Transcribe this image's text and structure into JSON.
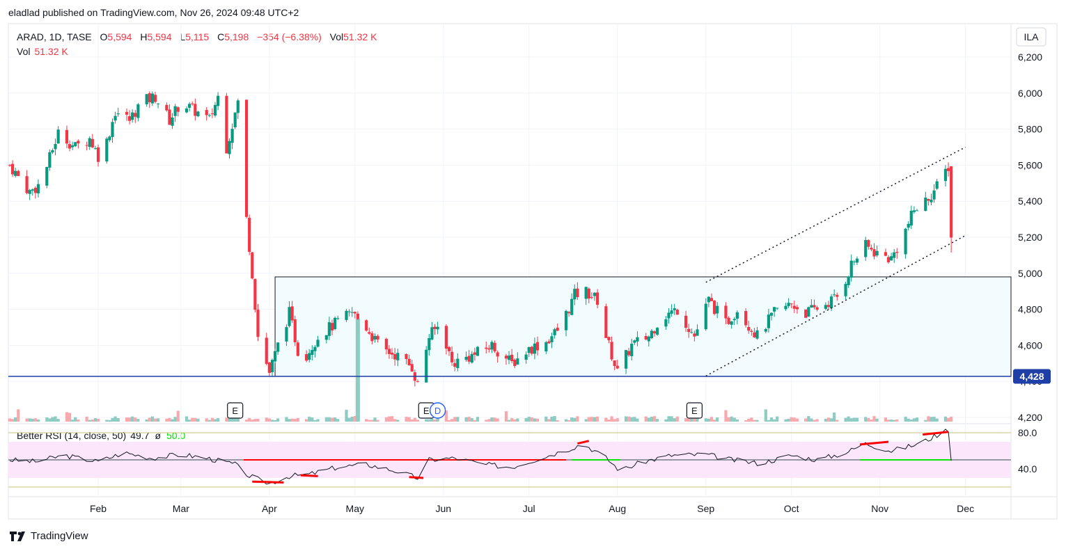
{
  "publisher_line": "eladlad published on TradingView.com, Nov 26, 2024 09:48 UTC+2",
  "legend": {
    "symbol": "ARAD, 1D, TASE",
    "open_label": "O",
    "open": "5,594",
    "high_label": "H",
    "high": "5,594",
    "low_label": "L",
    "low": "5,115",
    "close_label": "C",
    "close": "5,198",
    "change": "−354 (−6.38%)",
    "vol_label": "Vol",
    "vol": "51.32 K"
  },
  "vol_line": {
    "label": "Vol",
    "value": "51.32 K"
  },
  "currency": "ILA",
  "rsi_legend": {
    "label": "Better RSI (14, close, 50)",
    "value": "49.7",
    "sep": "ø",
    "mid": "50.0"
  },
  "brand": "TradingView",
  "colors": {
    "up": "#089981",
    "down": "#f23645",
    "up_vol": "#8ecbc3",
    "down_vol": "#f7a9ae",
    "support": "#2962ff",
    "box_fill": "#f2fbfd",
    "rsi_band": "#fce6fb"
  },
  "events": [
    {
      "type": "earnings",
      "label": "E",
      "date": "2024-03-20"
    },
    {
      "type": "earnings",
      "label": "E",
      "date": "2024-05-26"
    },
    {
      "type": "dividend",
      "label": "D",
      "date": "2024-05-30"
    },
    {
      "type": "earnings",
      "label": "E",
      "date": "2024-08-28"
    }
  ],
  "chart_data": {
    "type": "candlestick",
    "ylim": [
      4100,
      6300
    ],
    "price_ticks": [
      "4,200",
      "4,400",
      "4,600",
      "4,800",
      "5,000",
      "5,200",
      "5,400",
      "5,600",
      "5,800",
      "6,000",
      "6,200"
    ],
    "price_tick_values": [
      4200,
      4400,
      4600,
      4800,
      5000,
      5200,
      5400,
      5600,
      5800,
      6000,
      6200
    ],
    "last_price": 4428,
    "last_price_label": "4,428",
    "x_ticks": [
      "Feb",
      "Mar",
      "Apr",
      "May",
      "Jun",
      "Jul",
      "Aug",
      "Sep",
      "Oct",
      "Nov",
      "Dec"
    ],
    "x_tick_dates": [
      "2024-02-01",
      "2024-03-01",
      "2024-04-01",
      "2024-05-01",
      "2024-06-01",
      "2024-07-01",
      "2024-08-01",
      "2024-09-01",
      "2024-10-01",
      "2024-11-01",
      "2024-12-01"
    ],
    "waypoints": [
      [
        "2024-01-01",
        5600
      ],
      [
        "2024-01-08",
        5450
      ],
      [
        "2024-01-12",
        5500
      ],
      [
        "2024-01-18",
        5780
      ],
      [
        "2024-01-24",
        5700
      ],
      [
        "2024-01-29",
        5750
      ],
      [
        "2024-02-02",
        5620
      ],
      [
        "2024-02-07",
        5900
      ],
      [
        "2024-02-12",
        5850
      ],
      [
        "2024-02-16",
        5950
      ],
      [
        "2024-02-21",
        5980
      ],
      [
        "2024-02-26",
        5850
      ],
      [
        "2024-03-01",
        5950
      ],
      [
        "2024-03-06",
        5900
      ],
      [
        "2024-03-11",
        5850
      ],
      [
        "2024-03-14",
        5980
      ],
      [
        "2024-03-17",
        5700
      ],
      [
        "2024-03-21",
        5950
      ],
      [
        "2024-03-24",
        5300
      ],
      [
        "2024-03-26",
        5000
      ],
      [
        "2024-03-28",
        4650
      ],
      [
        "2024-04-01",
        4450
      ],
      [
        "2024-04-04",
        4600
      ],
      [
        "2024-04-08",
        4780
      ],
      [
        "2024-04-12",
        4500
      ],
      [
        "2024-04-18",
        4650
      ],
      [
        "2024-04-24",
        4720
      ],
      [
        "2024-04-30",
        4780
      ],
      [
        "2024-05-05",
        4700
      ],
      [
        "2024-05-10",
        4580
      ],
      [
        "2024-05-15",
        4550
      ],
      [
        "2024-05-21",
        4480
      ],
      [
        "2024-05-23",
        4380
      ],
      [
        "2024-05-27",
        4650
      ],
      [
        "2024-05-31",
        4720
      ],
      [
        "2024-06-04",
        4500
      ],
      [
        "2024-06-12",
        4550
      ],
      [
        "2024-06-18",
        4600
      ],
      [
        "2024-06-25",
        4500
      ],
      [
        "2024-07-01",
        4580
      ],
      [
        "2024-07-07",
        4620
      ],
      [
        "2024-07-12",
        4700
      ],
      [
        "2024-07-17",
        4880
      ],
      [
        "2024-07-21",
        4900
      ],
      [
        "2024-07-25",
        4850
      ],
      [
        "2024-07-28",
        4650
      ],
      [
        "2024-08-01",
        4450
      ],
      [
        "2024-08-06",
        4600
      ],
      [
        "2024-08-12",
        4650
      ],
      [
        "2024-08-16",
        4750
      ],
      [
        "2024-08-22",
        4800
      ],
      [
        "2024-08-28",
        4650
      ],
      [
        "2024-09-02",
        4850
      ],
      [
        "2024-09-08",
        4720
      ],
      [
        "2024-09-12",
        4800
      ],
      [
        "2024-09-19",
        4650
      ],
      [
        "2024-09-25",
        4780
      ],
      [
        "2024-10-01",
        4830
      ],
      [
        "2024-10-06",
        4780
      ],
      [
        "2024-10-12",
        4820
      ],
      [
        "2024-10-18",
        4880
      ],
      [
        "2024-10-22",
        5050
      ],
      [
        "2024-10-27",
        5150
      ],
      [
        "2024-11-01",
        5100
      ],
      [
        "2024-11-05",
        5080
      ],
      [
        "2024-11-09",
        5200
      ],
      [
        "2024-11-13",
        5350
      ],
      [
        "2024-11-17",
        5400
      ],
      [
        "2024-11-21",
        5480
      ],
      [
        "2024-11-25",
        5594
      ]
    ],
    "last_candle": {
      "date": "2024-11-26",
      "open": 5594,
      "high": 5594,
      "low": 5115,
      "close": 5198
    },
    "range_box": {
      "from": "2024-04-03",
      "price_top": 4980,
      "price_bottom": 4428
    },
    "support_line": 4428,
    "channel_upper": [
      [
        "2024-09-01",
        4950
      ],
      [
        "2024-12-01",
        5700
      ]
    ],
    "channel_lower": [
      [
        "2024-09-01",
        4430
      ],
      [
        "2024-12-01",
        5210
      ]
    ],
    "rsi": {
      "ylim": [
        20,
        95
      ],
      "ticks": [
        "80.0",
        "40.0"
      ],
      "tick_values": [
        80,
        40
      ],
      "band": [
        30,
        70
      ],
      "mid": 50,
      "waypoints": [
        [
          "2024-01-01",
          50
        ],
        [
          "2024-01-10",
          48
        ],
        [
          "2024-01-20",
          55
        ],
        [
          "2024-02-01",
          48
        ],
        [
          "2024-02-10",
          58
        ],
        [
          "2024-02-20",
          52
        ],
        [
          "2024-03-01",
          56
        ],
        [
          "2024-03-10",
          52
        ],
        [
          "2024-03-20",
          45
        ],
        [
          "2024-03-25",
          32
        ],
        [
          "2024-04-01",
          24
        ],
        [
          "2024-04-08",
          32
        ],
        [
          "2024-04-15",
          34
        ],
        [
          "2024-04-25",
          42
        ],
        [
          "2024-05-05",
          45
        ],
        [
          "2024-05-15",
          38
        ],
        [
          "2024-05-23",
          30
        ],
        [
          "2024-05-27",
          50
        ],
        [
          "2024-06-05",
          52
        ],
        [
          "2024-06-15",
          45
        ],
        [
          "2024-06-25",
          42
        ],
        [
          "2024-07-05",
          52
        ],
        [
          "2024-07-15",
          62
        ],
        [
          "2024-07-20",
          68
        ],
        [
          "2024-07-28",
          52
        ],
        [
          "2024-08-02",
          38
        ],
        [
          "2024-08-10",
          48
        ],
        [
          "2024-08-20",
          55
        ],
        [
          "2024-09-01",
          56
        ],
        [
          "2024-09-10",
          50
        ],
        [
          "2024-09-20",
          46
        ],
        [
          "2024-10-01",
          55
        ],
        [
          "2024-10-10",
          50
        ],
        [
          "2024-10-20",
          58
        ],
        [
          "2024-10-27",
          68
        ],
        [
          "2024-11-05",
          60
        ],
        [
          "2024-11-15",
          68
        ],
        [
          "2024-11-20",
          76
        ],
        [
          "2024-11-25",
          84
        ],
        [
          "2024-11-26",
          50
        ]
      ]
    }
  }
}
